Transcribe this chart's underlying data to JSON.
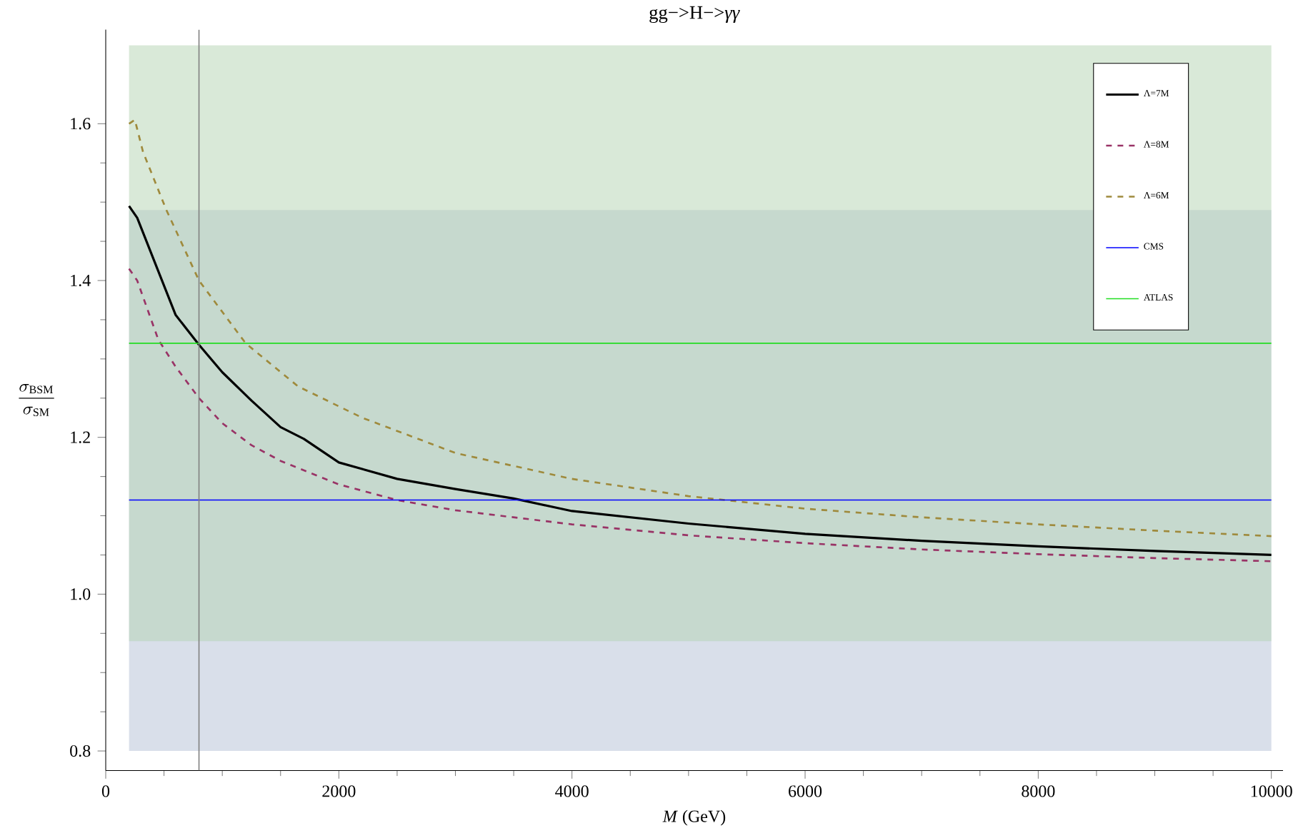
{
  "chart_data": {
    "type": "line",
    "title": "gg−>H−>*γγ*",
    "xlabel": "*M* (GeV)",
    "ylabel": "\\frac{\\sigma_{\\mathrm{BSM}}}{\\sigma_{\\mathrm{SM}}}",
    "xlim": [
      0,
      10100
    ],
    "ylim": [
      0.775,
      1.72
    ],
    "xticks": [
      0,
      2000,
      4000,
      6000,
      8000,
      10000
    ],
    "yticks": [
      {
        "value": 0.8,
        "label": "0.8"
      },
      {
        "value": 1.0,
        "label": "1.0"
      },
      {
        "value": 1.2,
        "label": "1.2"
      },
      {
        "value": 1.4,
        "label": "1.4"
      },
      {
        "value": 1.6,
        "label": "1.6"
      }
    ],
    "legend": "top right",
    "grid": false,
    "series": [
      {
        "name": "Λ=7M",
        "color": "#000000",
        "line_style": "solid",
        "x": [
          200,
          270,
          440,
          600,
          800,
          1000,
          1250,
          1500,
          1700,
          2000,
          2500,
          3000,
          3500,
          4000,
          5000,
          6000,
          7000,
          8000,
          9000,
          10000
        ],
        "values": [
          1.495,
          1.48,
          1.416,
          1.356,
          1.318,
          1.283,
          1.247,
          1.213,
          1.198,
          1.168,
          1.147,
          1.134,
          1.122,
          1.106,
          1.09,
          1.077,
          1.068,
          1.061,
          1.055,
          1.05
        ]
      },
      {
        "name": "Λ=8M",
        "color": "#993366",
        "line_style": "dashed",
        "x": [
          200,
          270,
          450,
          600,
          800,
          1000,
          1250,
          1500,
          2000,
          2500,
          3000,
          4000,
          5000,
          6000,
          7000,
          8000,
          9000,
          10000
        ],
        "values": [
          1.415,
          1.4,
          1.325,
          1.29,
          1.25,
          1.218,
          1.19,
          1.17,
          1.14,
          1.12,
          1.107,
          1.089,
          1.075,
          1.065,
          1.057,
          1.051,
          1.046,
          1.042
        ]
      },
      {
        "name": "Λ=6M",
        "color": "#9f8a3c",
        "line_style": "dashed",
        "x": [
          200,
          250,
          320,
          520,
          800,
          1200,
          1650,
          2200,
          3000,
          4000,
          5000,
          6000,
          7000,
          8000,
          9000,
          10000
        ],
        "values": [
          1.6,
          1.605,
          1.564,
          1.49,
          1.4,
          1.32,
          1.265,
          1.225,
          1.18,
          1.147,
          1.125,
          1.109,
          1.098,
          1.089,
          1.081,
          1.074
        ]
      }
    ],
    "ref_lines": [
      {
        "axis": "y",
        "value": 1.12,
        "label": "CMS",
        "color": "#0000ff"
      },
      {
        "axis": "y",
        "value": 1.32,
        "label": "ATLAS",
        "color": "#22dd22"
      },
      {
        "axis": "x",
        "value": 800,
        "color": "#808080"
      }
    ],
    "bands": [
      {
        "axis": "y",
        "from": 0.8,
        "to": 1.49,
        "color": "#b3bfd5"
      },
      {
        "axis": "y",
        "from": 0.94,
        "to": 1.7,
        "color": "#b3d3b1"
      }
    ]
  }
}
